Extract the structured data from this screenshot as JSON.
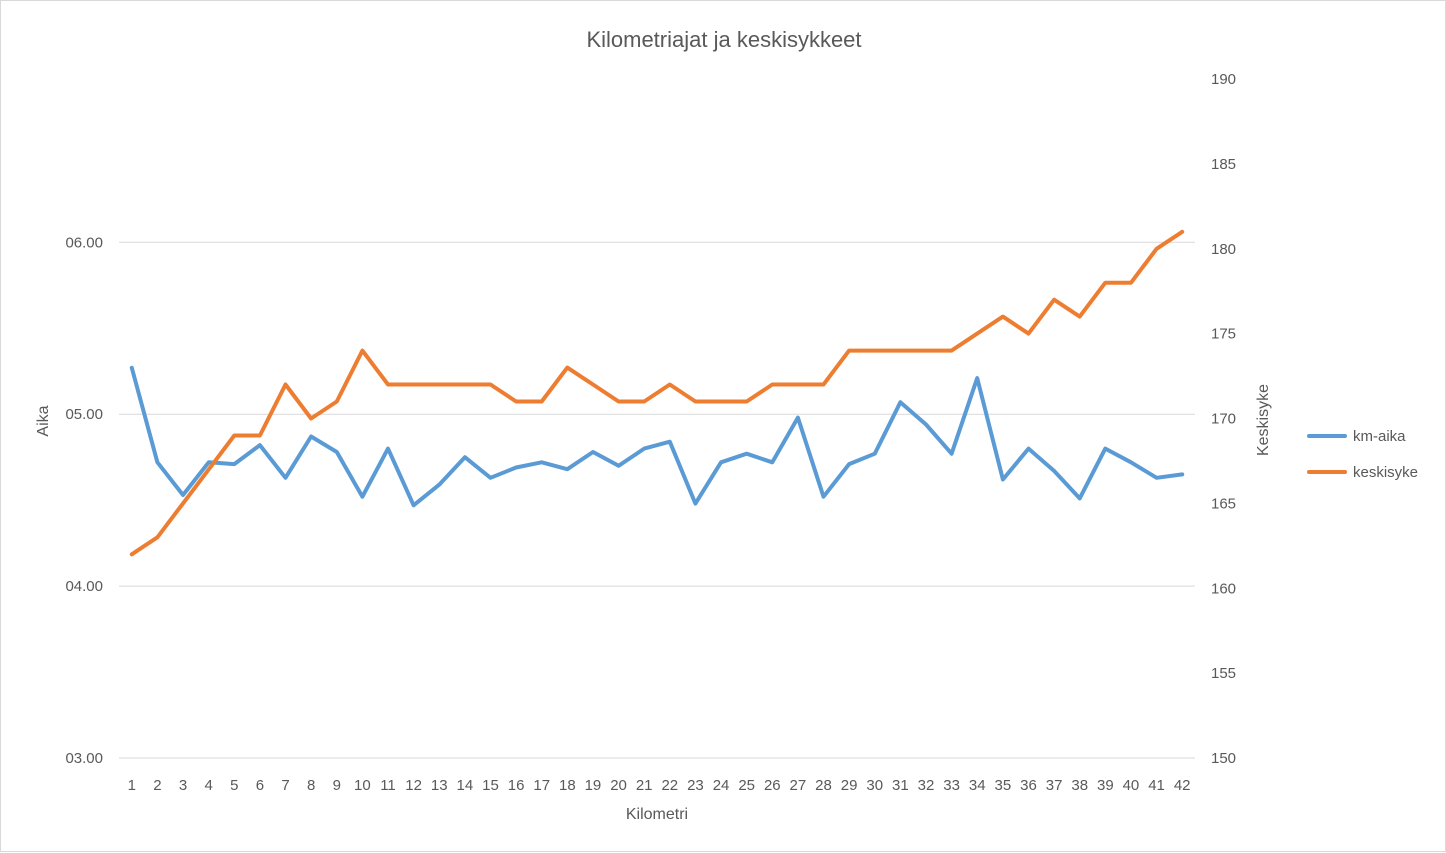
{
  "chart_data": {
    "type": "line",
    "title": "Kilometriajat ja keskisykkeet",
    "xlabel": "Kilometri",
    "ylabel_left": "Aika",
    "ylabel_right": "Keskisyke",
    "categories": [
      "1",
      "2",
      "3",
      "4",
      "5",
      "6",
      "7",
      "8",
      "9",
      "10",
      "11",
      "12",
      "13",
      "14",
      "15",
      "16",
      "17",
      "18",
      "19",
      "20",
      "21",
      "22",
      "23",
      "24",
      "25",
      "26",
      "27",
      "28",
      "29",
      "30",
      "31",
      "32",
      "33",
      "34",
      "35",
      "36",
      "37",
      "38",
      "39",
      "40",
      "41",
      "42"
    ],
    "left_axis": {
      "ticks": [
        "03.00",
        "04.00",
        "05.00",
        "06.00"
      ],
      "range_minutes": [
        3,
        6.95
      ],
      "tick_values_minutes": [
        3,
        4,
        5,
        6
      ]
    },
    "right_axis": {
      "ticks": [
        "150",
        "155",
        "160",
        "165",
        "170",
        "175",
        "180",
        "185",
        "190"
      ],
      "range": [
        150,
        190
      ],
      "tick_values": [
        150,
        155,
        160,
        165,
        170,
        175,
        180,
        185,
        190
      ]
    },
    "legend_position": "right",
    "grid": true,
    "series": [
      {
        "name": "km-aika",
        "axis": "left",
        "color": "#5b9bd5",
        "values": [
          5.27,
          4.72,
          4.53,
          4.72,
          4.71,
          4.82,
          4.63,
          4.87,
          4.78,
          4.52,
          4.8,
          4.47,
          4.59,
          4.75,
          4.63,
          4.69,
          4.72,
          4.68,
          4.78,
          4.7,
          4.8,
          4.84,
          4.48,
          4.72,
          4.77,
          4.72,
          4.98,
          4.52,
          4.71,
          4.77,
          5.07,
          4.94,
          4.77,
          5.21,
          4.62,
          4.8,
          4.67,
          4.51,
          4.8,
          4.72,
          4.63,
          4.65
        ]
      },
      {
        "name": "keskisyke",
        "axis": "right",
        "color": "#ed7d31",
        "values": [
          162,
          163,
          165,
          167,
          169,
          169,
          172,
          170,
          171,
          174,
          172,
          172,
          172,
          172,
          172,
          171,
          171,
          173,
          172,
          171,
          171,
          172,
          171,
          171,
          171,
          172,
          172,
          172,
          174,
          174,
          174,
          174,
          174,
          175,
          176,
          175,
          177,
          176,
          178,
          178,
          180,
          181
        ]
      }
    ]
  }
}
